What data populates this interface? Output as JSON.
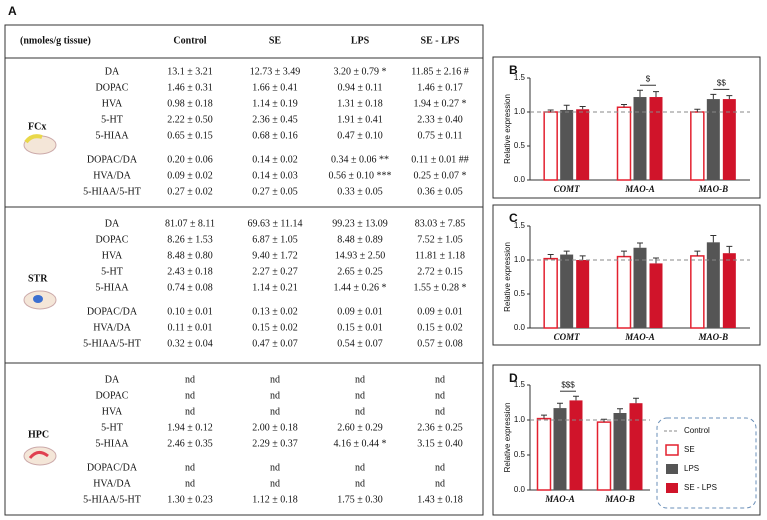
{
  "table": {
    "panel_label": "A",
    "header": [
      "(nmoles/g tissue)",
      "Control",
      "SE",
      "LPS",
      "SE - LPS"
    ],
    "sections": [
      {
        "region": "FCx",
        "rows": [
          [
            "DA",
            "13.1 ± 3.21",
            "12.73 ± 3.49",
            "3.20 ± 0.79 *",
            "11.85 ± 2.16 #"
          ],
          [
            "DOPAC",
            "1.46 ± 0.31",
            "1.66 ± 0.41",
            "0.94 ± 0.11",
            "1.46 ± 0.17"
          ],
          [
            "HVA",
            "0.98 ± 0.18",
            "1.14 ± 0.19",
            "1.31 ± 0.18",
            "1.94 ± 0.27 *"
          ],
          [
            "5-HT",
            "2.22 ± 0.50",
            "2.36 ± 0.45",
            "1.91 ± 0.41",
            "2.33 ± 0.40"
          ],
          [
            "5-HIAA",
            "0.65 ± 0.15",
            "0.68 ± 0.16",
            "0.47 ± 0.10",
            "0.75 ± 0.11"
          ],
          [
            "DOPAC/DA",
            "0.20 ± 0.06",
            "0.14 ± 0.02",
            "0.34 ± 0.06 **",
            "0.11 ± 0.01 ##"
          ],
          [
            "HVA/DA",
            "0.09 ± 0.02",
            "0.14 ± 0.03",
            "0.56 ± 0.10 ***",
            "0.25 ± 0.07 *"
          ],
          [
            "5-HIAA/5-HT",
            "0.27 ± 0.02",
            "0.27 ± 0.05",
            "0.33 ± 0.05",
            "0.36 ± 0.05"
          ]
        ]
      },
      {
        "region": "STR",
        "rows": [
          [
            "DA",
            "81.07 ± 8.11",
            "69.63 ± 11.14",
            "99.23 ± 13.09",
            "83.03 ± 7.85"
          ],
          [
            "DOPAC",
            "8.26 ± 1.53",
            "6.87 ± 1.05",
            "8.48 ± 0.89",
            "7.52 ± 1.05"
          ],
          [
            "HVA",
            "8.48 ± 0.80",
            "9.40 ± 1.72",
            "14.93 ± 2.50",
            "11.81 ± 1.18"
          ],
          [
            "5-HT",
            "2.43 ± 0.18",
            "2.27 ± 0.27",
            "2.65 ± 0.25",
            "2.72 ± 0.15"
          ],
          [
            "5-HIAA",
            "0.74 ± 0.08",
            "1.14 ± 0.21",
            "1.44 ± 0.26 *",
            "1.55 ± 0.28 *"
          ],
          [
            "DOPAC/DA",
            "0.10 ± 0.01",
            "0.13 ± 0.02",
            "0.09 ± 0.01",
            "0.09 ± 0.01"
          ],
          [
            "HVA/DA",
            "0.11 ± 0.01",
            "0.15 ± 0.02",
            "0.15 ± 0.01",
            "0.15 ± 0.02"
          ],
          [
            "5-HIAA/5-HT",
            "0.32 ± 0.04",
            "0.47 ± 0.07",
            "0.54 ± 0.07",
            "0.57 ± 0.08"
          ]
        ]
      },
      {
        "region": "HPC",
        "rows": [
          [
            "DA",
            "nd",
            "nd",
            "nd",
            "nd"
          ],
          [
            "DOPAC",
            "nd",
            "nd",
            "nd",
            "nd"
          ],
          [
            "HVA",
            "nd",
            "nd",
            "nd",
            "nd"
          ],
          [
            "5-HT",
            "1.94 ± 0.12",
            "2.00 ± 0.18",
            "2.60 ± 0.29",
            "2.36 ± 0.25"
          ],
          [
            "5-HIAA",
            "2.46 ± 0.35",
            "2.29 ± 0.37",
            "4.16 ± 0.44 *",
            "3.15 ± 0.40"
          ],
          [
            "DOPAC/DA",
            "nd",
            "nd",
            "nd",
            "nd"
          ],
          [
            "HVA/DA",
            "nd",
            "nd",
            "nd",
            "nd"
          ],
          [
            "5-HIAA/5-HT",
            "1.30 ± 0.23",
            "1.12 ± 0.18",
            "1.75 ± 0.30",
            "1.43 ± 0.18"
          ]
        ]
      }
    ]
  },
  "chart_data": [
    {
      "type": "bar",
      "panel_label": "B",
      "y_label": "Relative expression",
      "categories": [
        "COMT",
        "MAO-A",
        "MAO-B"
      ],
      "series": [
        {
          "color": "#e3202f",
          "hollow": true,
          "values": [
            1.0,
            1.07,
            1.0
          ],
          "errors": [
            0.03,
            0.04,
            0.04
          ]
        },
        {
          "color": "#555555",
          "values": [
            1.03,
            1.22,
            1.19
          ],
          "errors": [
            0.07,
            0.1,
            0.07
          ]
        },
        {
          "color": "#d0142a",
          "values": [
            1.04,
            1.22,
            1.19
          ],
          "errors": [
            0.04,
            0.08,
            0.05
          ]
        }
      ],
      "ylim": [
        0,
        1.5
      ],
      "yticks": [
        {
          "value": 0,
          "label": "0.0"
        },
        {
          "value": 0.5,
          "label": "0.5"
        },
        {
          "value": 1,
          "label": "1.0"
        },
        {
          "value": 1.5,
          "label": "1.5"
        }
      ],
      "reference": 1,
      "annotations": [
        {
          "text": "$",
          "category": "MAO-A"
        },
        {
          "text": "$$",
          "category": "MAO-B"
        }
      ]
    },
    {
      "type": "bar",
      "panel_label": "C",
      "y_label": "Relative expression",
      "categories": [
        "COMT",
        "MAO-A",
        "MAO-B"
      ],
      "series": [
        {
          "color": "#e3202f",
          "hollow": true,
          "values": [
            1.02,
            1.05,
            1.06
          ],
          "errors": [
            0.06,
            0.08,
            0.07
          ]
        },
        {
          "color": "#555555",
          "values": [
            1.08,
            1.18,
            1.26
          ],
          "errors": [
            0.05,
            0.07,
            0.1
          ]
        },
        {
          "color": "#d0142a",
          "values": [
            1.0,
            0.95,
            1.1
          ],
          "errors": [
            0.06,
            0.08,
            0.1
          ]
        }
      ],
      "ylim": [
        0,
        1.5
      ],
      "yticks": [
        {
          "value": 0,
          "label": "0.0"
        },
        {
          "value": 0.5,
          "label": "0.5"
        },
        {
          "value": 1,
          "label": "1.0"
        },
        {
          "value": 1.5,
          "label": "1.5"
        }
      ],
      "reference": 1,
      "annotations": []
    },
    {
      "type": "bar",
      "panel_label": "D",
      "y_label": "Relative expression",
      "categories": [
        "MAO-A",
        "MAO-B"
      ],
      "series": [
        {
          "name": "SE",
          "color": "#e3202f",
          "hollow": true,
          "values": [
            1.02,
            0.97
          ],
          "errors": [
            0.05,
            0.04
          ]
        },
        {
          "name": "LPS",
          "color": "#555555",
          "values": [
            1.17,
            1.1
          ],
          "errors": [
            0.07,
            0.06
          ]
        },
        {
          "name": "SE - LPS",
          "color": "#d0142a",
          "values": [
            1.28,
            1.24
          ],
          "errors": [
            0.06,
            0.07
          ]
        }
      ],
      "ylim": [
        0,
        1.5
      ],
      "yticks": [
        {
          "value": 0,
          "label": "0.0"
        },
        {
          "value": 0.5,
          "label": "0.5"
        },
        {
          "value": 1,
          "label": "1.0"
        },
        {
          "value": 1.5,
          "label": "1.5"
        }
      ],
      "reference": 1,
      "reference_label": "Control",
      "legend": true,
      "annotations": [
        {
          "text": "$$$",
          "category": "MAO-A"
        }
      ]
    }
  ]
}
